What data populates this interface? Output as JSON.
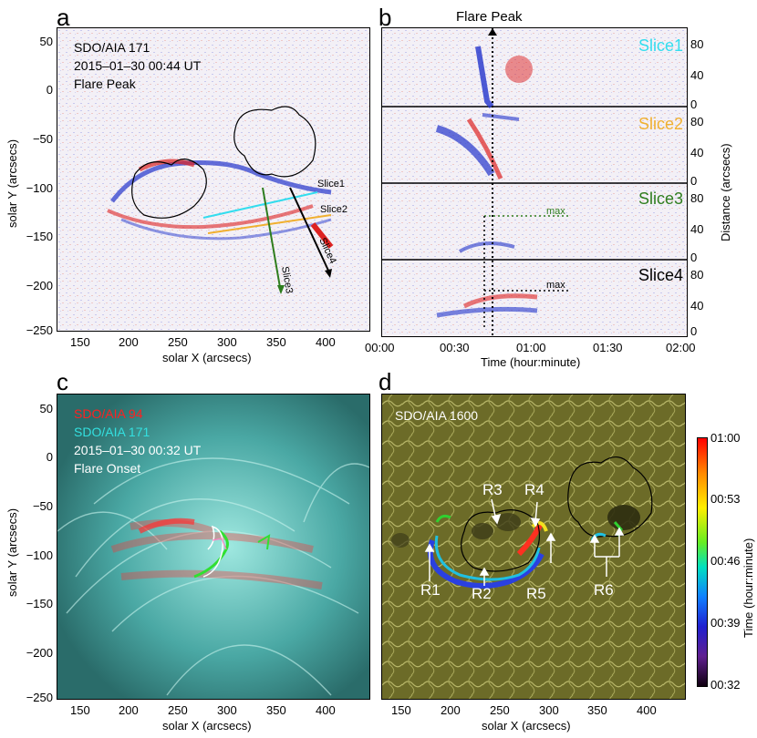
{
  "panel_a": {
    "letter": "a",
    "lines": [
      "SDO/AIA 171",
      "2015–01–30 00:44 UT",
      "Flare Peak"
    ],
    "xlabel": "solar X (arcsecs)",
    "ylabel": "solar Y (arcsecs)",
    "xticks": [
      "150",
      "200",
      "250",
      "300",
      "350",
      "400"
    ],
    "yticks": [
      "50",
      "0",
      "−50",
      "−100",
      "−150",
      "−200",
      "−250"
    ],
    "slice_labels": [
      "Slice1",
      "Slice2",
      "Slice3",
      "Slice4"
    ],
    "slice_colors": [
      "#33ddee",
      "#f0b030",
      "#2e7d1e",
      "#000000"
    ]
  },
  "panel_b": {
    "letter": "b",
    "title": "Flare Peak",
    "xlabel": "Time (hour:minute)",
    "ylabel": "Distance (arcsecs)",
    "xticks": [
      "00:00",
      "00:30",
      "01:00",
      "01:30",
      "02:00"
    ],
    "yticks": [
      "80",
      "40",
      "0"
    ],
    "slices": [
      {
        "label": "Slice1",
        "color": "#33ddee"
      },
      {
        "label": "Slice2",
        "color": "#f0b030"
      },
      {
        "label": "Slice3",
        "color": "#2e7d1e"
      },
      {
        "label": "Slice4",
        "color": "#000000"
      }
    ],
    "max_label": "max"
  },
  "panel_c": {
    "letter": "c",
    "lines": [
      {
        "text": "SDO/AIA 94",
        "color": "#ff2020"
      },
      {
        "text": "SDO/AIA 171",
        "color": "#33e0e0"
      },
      {
        "text": "2015–01–30 00:32 UT",
        "color": "#ffffff"
      },
      {
        "text": "Flare Onset",
        "color": "#ffffff"
      }
    ],
    "xlabel": "solar X (arcsecs)",
    "ylabel": "solar Y (arcsecs)",
    "xticks": [
      "150",
      "200",
      "250",
      "300",
      "350",
      "400"
    ],
    "yticks": [
      "50",
      "0",
      "−50",
      "−100",
      "−150",
      "−200",
      "−250"
    ]
  },
  "panel_d": {
    "letter": "d",
    "title": "SDO/AIA 1600",
    "xlabel": "solar X (arcsecs)",
    "xticks": [
      "150",
      "200",
      "250",
      "300",
      "350",
      "400"
    ],
    "region_labels": [
      "R1",
      "R2",
      "R3",
      "R4",
      "R5",
      "R6"
    ],
    "colorbar_label": "Time (hour:minute)",
    "colorbar_ticks": [
      "01:00",
      "00:53",
      "00:46",
      "00:39",
      "00:32"
    ]
  }
}
